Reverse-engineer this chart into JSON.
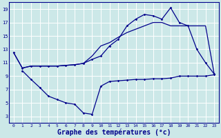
{
  "bg_color": "#cce8e8",
  "grid_color": "#ffffff",
  "line_color": "#00008b",
  "xlabel": "Graphe des températures (°c)",
  "xlabel_fontsize": 7,
  "ylim": [
    2,
    20
  ],
  "xlim": [
    -0.5,
    23.5
  ],
  "yticks": [
    3,
    5,
    7,
    9,
    11,
    13,
    15,
    17,
    19
  ],
  "xticks": [
    0,
    1,
    2,
    3,
    4,
    5,
    6,
    7,
    8,
    9,
    10,
    11,
    12,
    13,
    14,
    15,
    16,
    17,
    18,
    19,
    20,
    21,
    22,
    23
  ],
  "line1_x": [
    0,
    1,
    2,
    3,
    4,
    5,
    6,
    7,
    8,
    9,
    10,
    11,
    12,
    13,
    14,
    15,
    16,
    17,
    18,
    19,
    20,
    21,
    22,
    23
  ],
  "line1_y": [
    12.5,
    10.2,
    10.5,
    10.5,
    10.5,
    10.5,
    10.6,
    10.7,
    10.9,
    11.5,
    12.0,
    13.5,
    14.5,
    16.5,
    17.5,
    18.2,
    18.0,
    17.5,
    19.2,
    17.0,
    16.5,
    13.0,
    11.0,
    9.3
  ],
  "line2_x": [
    0,
    1,
    2,
    3,
    4,
    5,
    6,
    7,
    8,
    9,
    10,
    11,
    12,
    13,
    14,
    15,
    16,
    17,
    18,
    19,
    20,
    21,
    22,
    23
  ],
  "line2_y": [
    12.5,
    10.2,
    10.5,
    10.5,
    10.5,
    10.5,
    10.6,
    10.7,
    10.9,
    12.0,
    13.5,
    14.0,
    14.8,
    15.5,
    16.0,
    16.5,
    17.0,
    17.0,
    16.5,
    16.5,
    16.5,
    16.5,
    16.5,
    9.3
  ],
  "line3_x": [
    1,
    2,
    3,
    4,
    5,
    6,
    7,
    8,
    9,
    10,
    11,
    12,
    13,
    14,
    15,
    16,
    17,
    18,
    19,
    20,
    21,
    22,
    23
  ],
  "line3_y": [
    9.8,
    8.5,
    7.3,
    6.0,
    5.5,
    5.0,
    4.8,
    3.5,
    3.3,
    7.5,
    8.2,
    8.3,
    8.4,
    8.5,
    8.5,
    8.6,
    8.6,
    8.7,
    9.0,
    9.0,
    9.0,
    9.0,
    9.2
  ],
  "line1_marker": "D",
  "line2_marker": "None",
  "line3_marker": "D",
  "marker_size": 1.8,
  "linewidth": 0.9
}
